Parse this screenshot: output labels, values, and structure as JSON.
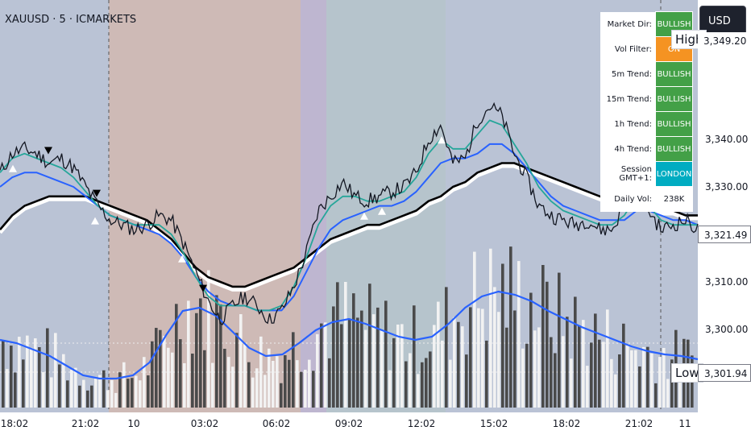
{
  "header": {
    "symbol": "XAUUSD · 5 · ICMARKETS"
  },
  "currency_button": {
    "label": "USD"
  },
  "high_tag": {
    "label": "High"
  },
  "low_tag": {
    "label": "Low"
  },
  "dashboard": {
    "rows": [
      {
        "label": "Market Dir:",
        "value": "BULLISH",
        "color": "#43a047"
      },
      {
        "label": "Vol Filter:",
        "value": "ON",
        "color": "#f59322"
      },
      {
        "label": "5m Trend:",
        "value": "BULLISH",
        "color": "#43a047"
      },
      {
        "label": "15m Trend:",
        "value": "BULLISH",
        "color": "#43a047"
      },
      {
        "label": "1h Trend:",
        "value": "BULLISH",
        "color": "#43a047"
      },
      {
        "label": "4h Trend:",
        "value": "BULLISH",
        "color": "#43a047"
      },
      {
        "label": "Session GMT+1:",
        "value": "LONDON",
        "color": "#00acc1"
      },
      {
        "label": "Daily Vol:",
        "value": "238K",
        "color": ""
      }
    ]
  },
  "price_tags": {
    "high_price": "3,349.20",
    "last_price": "3,321.49",
    "low_price": "3,301.94"
  },
  "colors": {
    "price_line": "#131722",
    "ema_fast": "#26a69a",
    "ema_mid": "#2962ff",
    "ema_slow": "#000000",
    "ema_slow_shadow": "#ffffff",
    "volume_ma": "#2962ff",
    "session_asia": "#b2bdd0",
    "session_london": "#c9b3ae",
    "session_overlap": "#b7aecb",
    "session_ny": "#aebec7"
  },
  "chart_data": {
    "type": "line",
    "symbol": "XAUUSD",
    "timeframe": "5",
    "x_ticks": [
      "18:02",
      "21:02",
      "10",
      "03:02",
      "06:02",
      "09:02",
      "12:02",
      "15:02",
      "18:02",
      "21:02",
      "11"
    ],
    "y_ticks": [
      "3,300.00",
      "3,310.00",
      "3,320.00",
      "3,330.00",
      "3,340.00",
      "3,349.20"
    ],
    "ylim": [
      3298,
      3352
    ],
    "grid": false,
    "series": [
      {
        "values": [
          3333,
          3337,
          3338,
          3337,
          3335,
          3336,
          3334,
          3330,
          3326,
          3323,
          3322,
          3321,
          3322,
          3324,
          3323,
          3318,
          3312,
          3306,
          3302,
          3305,
          3307,
          3305,
          3302,
          3304,
          3309,
          3316,
          3325,
          3328,
          3331,
          3328,
          3327,
          3328,
          3329,
          3330,
          3333,
          3340,
          3343,
          3335,
          3336,
          3344,
          3347,
          3345,
          3337,
          3332,
          3326,
          3324,
          3323,
          3322,
          3323,
          3321,
          3321,
          3326,
          3333,
          3325,
          3321,
          3322,
          3323,
          3321
        ]
      },
      {
        "values": [
          3333,
          3336,
          3337,
          3336,
          3335,
          3334,
          3332,
          3329,
          3326,
          3324,
          3323,
          3322,
          3322,
          3322,
          3320,
          3316,
          3311,
          3307,
          3305,
          3305,
          3305,
          3304,
          3304,
          3305,
          3309,
          3315,
          3322,
          3326,
          3328,
          3328,
          3327,
          3327,
          3328,
          3329,
          3332,
          3337,
          3340,
          3338,
          3338,
          3341,
          3344,
          3343,
          3339,
          3335,
          3330,
          3327,
          3325,
          3324,
          3323,
          3322,
          3322,
          3324,
          3328,
          3326,
          3323,
          3322,
          3322,
          3322
        ]
      },
      {
        "values": [
          3330,
          3332,
          3333,
          3333,
          3332,
          3331,
          3330,
          3328,
          3326,
          3324,
          3323,
          3322,
          3321,
          3320,
          3318,
          3315,
          3311,
          3308,
          3306,
          3305,
          3305,
          3304,
          3304,
          3304,
          3307,
          3312,
          3317,
          3321,
          3323,
          3324,
          3325,
          3326,
          3326,
          3327,
          3329,
          3332,
          3335,
          3336,
          3336,
          3337,
          3339,
          3339,
          3337,
          3334,
          3331,
          3328,
          3326,
          3325,
          3324,
          3323,
          3323,
          3323,
          3325,
          3325,
          3324,
          3323,
          3323,
          3322
        ]
      },
      {
        "values": [
          3321,
          3324,
          3326,
          3327,
          3328,
          3328,
          3328,
          3328,
          3327,
          3326,
          3325,
          3324,
          3323,
          3321,
          3319,
          3316,
          3313,
          3311,
          3310,
          3309,
          3309,
          3310,
          3311,
          3312,
          3313,
          3315,
          3317,
          3319,
          3320,
          3321,
          3322,
          3322,
          3323,
          3324,
          3325,
          3327,
          3328,
          3330,
          3331,
          3333,
          3334,
          3335,
          3335,
          3334,
          3333,
          3332,
          3331,
          3330,
          3329,
          3328,
          3327,
          3327,
          3326,
          3326,
          3325,
          3325,
          3324,
          3324
        ]
      }
    ],
    "volume": {
      "ma_values": [
        0.42,
        0.4,
        0.36,
        0.32,
        0.26,
        0.2,
        0.18,
        0.18,
        0.2,
        0.28,
        0.45,
        0.6,
        0.62,
        0.57,
        0.47,
        0.37,
        0.32,
        0.33,
        0.4,
        0.48,
        0.53,
        0.55,
        0.52,
        0.48,
        0.44,
        0.42,
        0.44,
        0.52,
        0.62,
        0.69,
        0.72,
        0.7,
        0.66,
        0.6,
        0.55,
        0.5,
        0.46,
        0.42,
        0.38,
        0.35,
        0.33,
        0.32,
        0.3
      ]
    },
    "signals": {
      "buy": [
        16,
        118,
        226,
        452,
        474,
        548
      ],
      "sell": [
        60,
        120,
        252
      ]
    },
    "sessions": [
      "asia",
      "london",
      "overlap",
      "ny",
      "asia"
    ]
  }
}
